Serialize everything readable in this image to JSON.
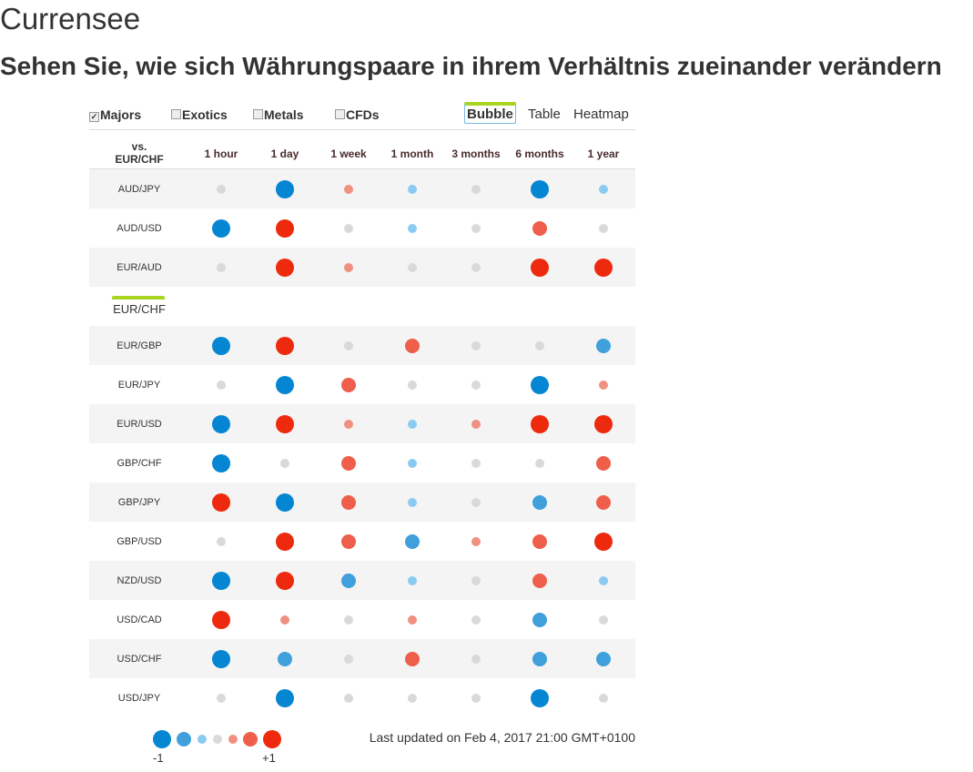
{
  "title": "Currensee",
  "subtitle": "Sehen Sie, wie sich Währungspaare in ihrem Verhältnis zueinander verändern",
  "filters": [
    {
      "label": "Majors",
      "checked": true
    },
    {
      "label": "Exotics",
      "checked": false
    },
    {
      "label": "Metals",
      "checked": false
    },
    {
      "label": "CFDs",
      "checked": false
    }
  ],
  "views": [
    {
      "label": "Bubble",
      "active": true
    },
    {
      "label": "Table",
      "active": false
    },
    {
      "label": "Heatmap",
      "active": false
    }
  ],
  "corner": {
    "line1": "vs.",
    "line2": "EUR/CHF"
  },
  "columns": [
    "1 hour",
    "1 day",
    "1 week",
    "1 month",
    "3 months",
    "6 months",
    "1 year"
  ],
  "level_scale": {
    "min": -3,
    "max": 3,
    "colors": {
      "-3": "#0586d2",
      "-2": "#3fa0dc",
      "-1": "#8ccbf1",
      "0": "#d9d9d9",
      "1": "#f09080",
      "2": "#ee5e4b",
      "3": "#ee2a0e"
    }
  },
  "rows": [
    {
      "pair": "AUD/JPY",
      "levels": [
        0,
        -3,
        1,
        -1,
        0,
        -3,
        -1
      ]
    },
    {
      "pair": "AUD/USD",
      "levels": [
        -3,
        3,
        0,
        -1,
        0,
        2,
        0
      ]
    },
    {
      "pair": "EUR/AUD",
      "levels": [
        0,
        3,
        1,
        0,
        0,
        3,
        3
      ]
    },
    {
      "pair": "EUR/CHF",
      "reference": true,
      "levels": []
    },
    {
      "pair": "EUR/GBP",
      "levels": [
        -3,
        3,
        0,
        2,
        0,
        0,
        -2
      ]
    },
    {
      "pair": "EUR/JPY",
      "levels": [
        0,
        -3,
        2,
        0,
        0,
        -3,
        1
      ]
    },
    {
      "pair": "EUR/USD",
      "levels": [
        -3,
        3,
        1,
        -1,
        1,
        3,
        3
      ]
    },
    {
      "pair": "GBP/CHF",
      "levels": [
        -3,
        0,
        2,
        -1,
        0,
        0,
        2
      ]
    },
    {
      "pair": "GBP/JPY",
      "levels": [
        3,
        -3,
        2,
        -1,
        0,
        -2,
        2
      ]
    },
    {
      "pair": "GBP/USD",
      "levels": [
        0,
        3,
        2,
        -2,
        1,
        2,
        3
      ]
    },
    {
      "pair": "NZD/USD",
      "levels": [
        -3,
        3,
        -2,
        -1,
        0,
        2,
        -1
      ]
    },
    {
      "pair": "USD/CAD",
      "levels": [
        3,
        1,
        0,
        1,
        0,
        -2,
        0
      ]
    },
    {
      "pair": "USD/CHF",
      "levels": [
        -3,
        -2,
        0,
        2,
        0,
        -2,
        -2
      ]
    },
    {
      "pair": "USD/JPY",
      "levels": [
        0,
        -3,
        0,
        0,
        0,
        -3,
        0
      ]
    }
  ],
  "legend": {
    "min_label": "-1",
    "max_label": "+1",
    "levels": [
      -3,
      -2,
      -1,
      0,
      1,
      2,
      3
    ]
  },
  "last_updated": "Last updated on Feb 4, 2017 21:00 GMT+0100"
}
